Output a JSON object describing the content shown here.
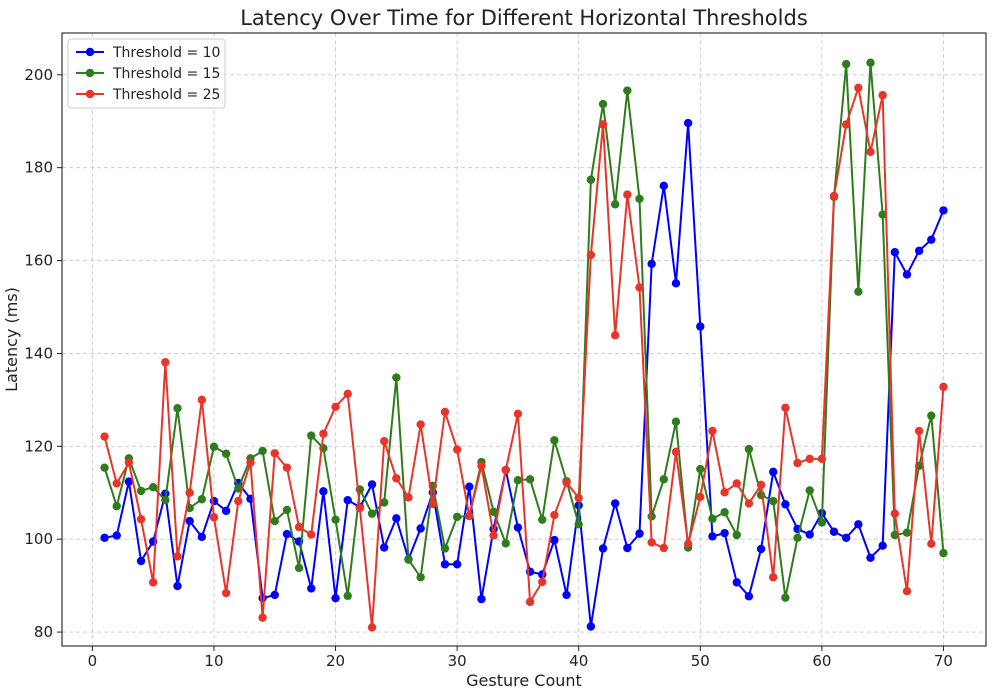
{
  "chart_data": {
    "type": "line",
    "title": "Latency Over Time for Different Horizontal Thresholds",
    "xlabel": "Gesture Count",
    "ylabel": "Latency (ms)",
    "xlim": [
      -2.5,
      73.5
    ],
    "ylim": [
      77,
      209
    ],
    "xticks": [
      0,
      10,
      20,
      30,
      40,
      50,
      60,
      70
    ],
    "yticks": [
      80,
      100,
      120,
      140,
      160,
      180,
      200
    ],
    "grid": true,
    "legend_position": "top-left",
    "x": [
      1,
      2,
      3,
      4,
      5,
      6,
      7,
      8,
      9,
      10,
      11,
      12,
      13,
      14,
      15,
      16,
      17,
      18,
      19,
      20,
      21,
      22,
      23,
      24,
      25,
      26,
      27,
      28,
      29,
      30,
      31,
      32,
      33,
      34,
      35,
      36,
      37,
      38,
      39,
      40,
      41,
      42,
      43,
      44,
      45,
      46,
      47,
      48,
      49,
      50,
      51,
      52,
      53,
      54,
      55,
      56,
      57,
      58,
      59,
      60,
      61,
      62,
      63,
      64,
      65,
      66,
      67,
      68,
      69,
      70
    ],
    "series": [
      {
        "name": "Threshold = 10",
        "color": "#0000ff",
        "values": [
          100.3,
          100.8,
          112.4,
          95.3,
          99.5,
          109.8,
          89.9,
          103.9,
          100.5,
          108.2,
          106.1,
          112.1,
          108.7,
          87.3,
          88.0,
          101.1,
          99.5,
          89.4,
          110.3,
          87.3,
          108.4,
          106.9,
          111.8,
          98.2,
          104.5,
          95.7,
          102.3,
          110.1,
          94.6,
          94.6,
          111.3,
          87.1,
          102.2,
          114.9,
          102.5,
          93.0,
          92.4,
          99.8,
          88.0,
          107.3,
          81.2,
          98.0,
          107.7,
          98.1,
          101.2,
          159.3,
          176.1,
          155.1,
          189.6,
          145.8,
          100.6,
          101.3,
          90.7,
          87.7,
          97.9,
          114.5,
          107.5,
          102.2,
          101.0,
          105.6,
          101.6,
          100.3,
          103.2,
          96.0,
          98.6,
          161.8,
          157.0,
          162.1,
          164.5,
          170.8
        ]
      },
      {
        "name": "Threshold = 15",
        "color": "#2e7d1c",
        "values": [
          115.4,
          107.1,
          117.4,
          110.4,
          111.2,
          108.4,
          128.2,
          106.7,
          108.6,
          119.9,
          118.4,
          110.9,
          117.4,
          119.0,
          103.9,
          106.3,
          93.8,
          122.3,
          119.6,
          104.2,
          87.8,
          110.7,
          105.5,
          107.9,
          134.8,
          95.6,
          91.8,
          111.5,
          98.0,
          104.8,
          105.0,
          116.6,
          105.9,
          99.1,
          112.7,
          112.9,
          104.2,
          121.3,
          112.5,
          103.2,
          177.4,
          193.7,
          172.1,
          196.6,
          173.3,
          104.9,
          112.9,
          125.3,
          98.2,
          115.1,
          104.4,
          105.8,
          100.9,
          119.4,
          109.5,
          108.2,
          87.4,
          100.3,
          110.5,
          103.6,
          173.7,
          202.3,
          153.3,
          202.6,
          169.9,
          100.9,
          101.4,
          115.8,
          126.6,
          97.0
        ]
      },
      {
        "name": "Threshold = 25",
        "color": "#e8352a",
        "values": [
          122.1,
          112.0,
          116.5,
          104.3,
          90.7,
          138.1,
          96.3,
          110.0,
          130.0,
          104.7,
          88.4,
          108.2,
          116.5,
          83.1,
          118.5,
          115.4,
          102.6,
          101.0,
          122.7,
          128.5,
          131.3,
          106.7,
          81.0,
          121.1,
          113.1,
          109.0,
          124.7,
          107.6,
          127.4,
          119.3,
          105.0,
          115.8,
          100.8,
          114.9,
          127.0,
          86.5,
          90.8,
          105.2,
          112.2,
          108.9,
          161.2,
          189.3,
          143.9,
          174.2,
          154.2,
          99.3,
          98.1,
          118.8,
          99.0,
          109.1,
          123.3,
          110.1,
          112.0,
          107.7,
          111.7,
          91.8,
          128.3,
          116.4,
          117.3,
          117.3,
          173.9,
          189.3,
          197.2,
          183.4,
          195.6,
          105.5,
          88.8,
          123.3,
          99.0,
          132.8
        ]
      }
    ]
  }
}
